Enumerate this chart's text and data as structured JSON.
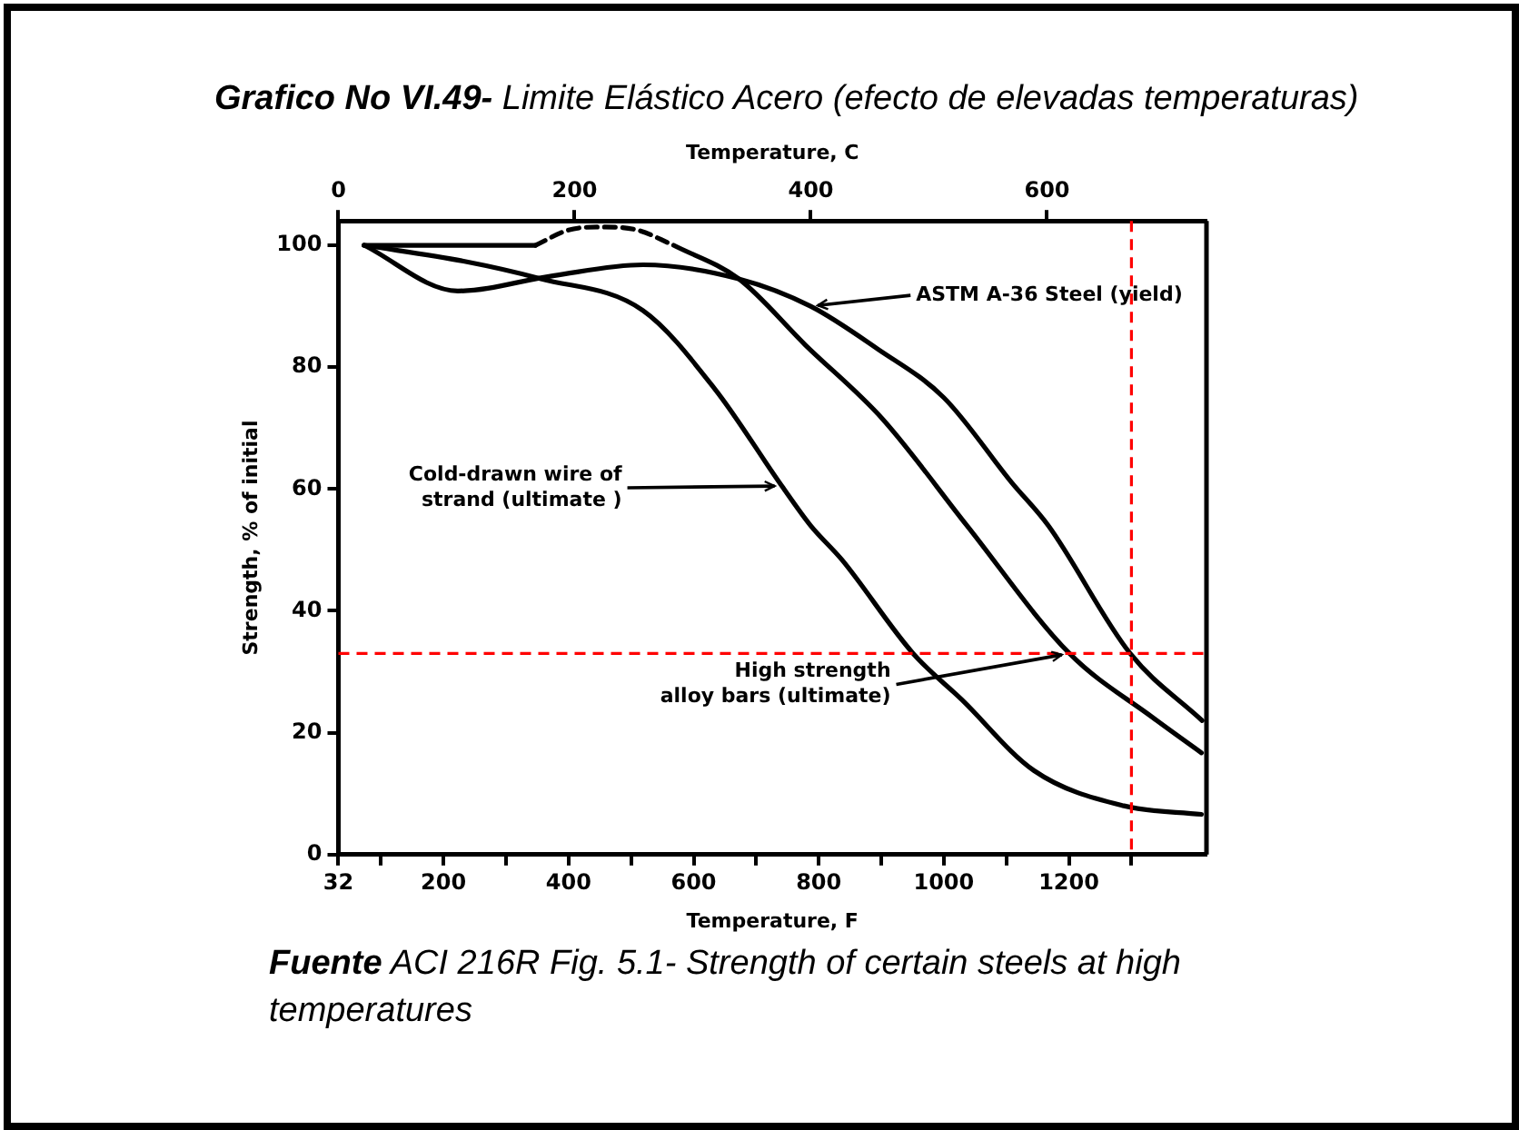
{
  "chart_data": {
    "type": "line",
    "title": "Grafico No VI.49-",
    "subtitle": "Limite Elástico Acero (efecto de elevadas temperaturas)",
    "xlabel": "Temperature, F",
    "x2label": "Temperature, C",
    "ylabel": "Strength, % of initial",
    "xlim": [
      32,
      1420
    ],
    "xticks": [
      32,
      {
        "value": 100,
        "label": null
      },
      200,
      {
        "value": 300,
        "label": null
      },
      400,
      {
        "value": 500,
        "label": null
      },
      600,
      {
        "value": 700,
        "label": null
      },
      800,
      {
        "value": 900,
        "label": null
      },
      1000,
      {
        "value": 1100,
        "label": null
      },
      1200,
      {
        "value": 1300,
        "label": null
      }
    ],
    "x2lim": [
      0,
      735
    ],
    "x2ticks": [
      0,
      200,
      400,
      600
    ],
    "ylim": [
      0,
      104
    ],
    "yticks": [
      0,
      20,
      40,
      60,
      80,
      100
    ],
    "grid": false,
    "legend": false,
    "marker": "none",
    "series": [
      {
        "color": "#000000",
        "x": [
          73,
          223,
          375,
          519,
          672,
          787,
          894,
          1000,
          1109,
          1167,
          1298,
          1413
        ],
        "values": [
          100,
          92.5,
          95,
          96.8,
          94.5,
          90,
          83,
          75,
          61,
          54,
          33,
          22
        ]
      },
      {
        "color": "#000000",
        "x": [
          73,
          232,
          356,
          519,
          634,
          741,
          787,
          837,
          951,
          1029,
          1144,
          1288,
          1412
        ],
        "values": [
          100,
          97.4,
          94.5,
          89.3,
          76.4,
          60.5,
          54,
          48.4,
          33,
          25.4,
          13.8,
          8,
          6.6
        ]
      },
      {
        "color": "#000000",
        "x": [
          73,
          347,
          453,
          568,
          672,
          779,
          902,
          1037,
          1201,
          1334,
          1412
        ],
        "values": [
          100,
          100,
          null,
          100,
          94.5,
          83.6,
          71.5,
          54,
          33,
          22.5,
          16.7
        ]
      },
      {
        "color": "#000000",
        "line_style": "dashed",
        "x": [
          347,
          400,
          453,
          510,
          568
        ],
        "values": [
          100,
          102.5,
          103,
          102.5,
          100
        ]
      }
    ],
    "ref_lines": [
      {
        "axis": "y",
        "value": 33,
        "color": "#ff0000",
        "line_style": "dashed"
      },
      {
        "axis": "x",
        "value": 1300,
        "color": "#ff0000",
        "line_style": "dashed"
      }
    ],
    "annotations": [
      {
        "text": "ASTM A-36 Steel (yield)",
        "x": 787,
        "y": 90
      },
      {
        "text": "Cold-drawn wire of\nstrand (ultimate )",
        "x": 741,
        "y": 60.5
      },
      {
        "text": "High strength\nalloy bars (ultimate)",
        "x": 1200,
        "y": 33
      },
      "Fuente ACI 216R Fig. 5.1- Strength of certain steels at high temperatures"
    ]
  }
}
